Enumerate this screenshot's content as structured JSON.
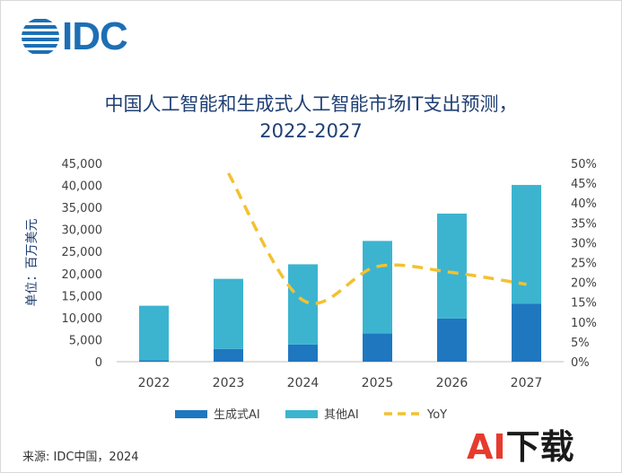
{
  "brand": {
    "logo_text": "IDC"
  },
  "title_line1": "中国人工智能和生成式人工智能市场IT支出预测，",
  "title_line2": "2022-2027",
  "source": "来源: IDC中国，2024",
  "watermark": {
    "part1": "AI",
    "part2": "下载"
  },
  "colors": {
    "genai": "#1f77c0",
    "other_ai": "#3cb4d0",
    "yoy": "#f3c131",
    "axis_text": "#404040",
    "title": "#1f3f73"
  },
  "chart_data": {
    "type": "bar",
    "stacked": true,
    "categories": [
      "2022",
      "2023",
      "2024",
      "2025",
      "2026",
      "2027"
    ],
    "series": [
      {
        "name": "生成式AI",
        "values": [
          300,
          2900,
          3900,
          6400,
          9800,
          13200
        ]
      },
      {
        "name": "其他AI",
        "values": [
          12400,
          15900,
          18200,
          21000,
          23800,
          26900
        ]
      }
    ],
    "line_series": {
      "name": "YoY",
      "axis": "right",
      "style": "dashed",
      "values": [
        null,
        47.5,
        15.5,
        24.0,
        22.5,
        19.5
      ]
    },
    "ylabel": "单位：百万美元",
    "ylim": [
      0,
      45000
    ],
    "y_ticks": [
      "0",
      "5,000",
      "10,000",
      "15,000",
      "20,000",
      "25,000",
      "30,000",
      "35,000",
      "40,000",
      "45,000"
    ],
    "y2lim": [
      0,
      50
    ],
    "y2_ticks": [
      "0%",
      "5%",
      "10%",
      "15%",
      "20%",
      "25%",
      "30%",
      "35%",
      "40%",
      "45%",
      "50%"
    ],
    "grid": false,
    "legend_position": "bottom"
  }
}
